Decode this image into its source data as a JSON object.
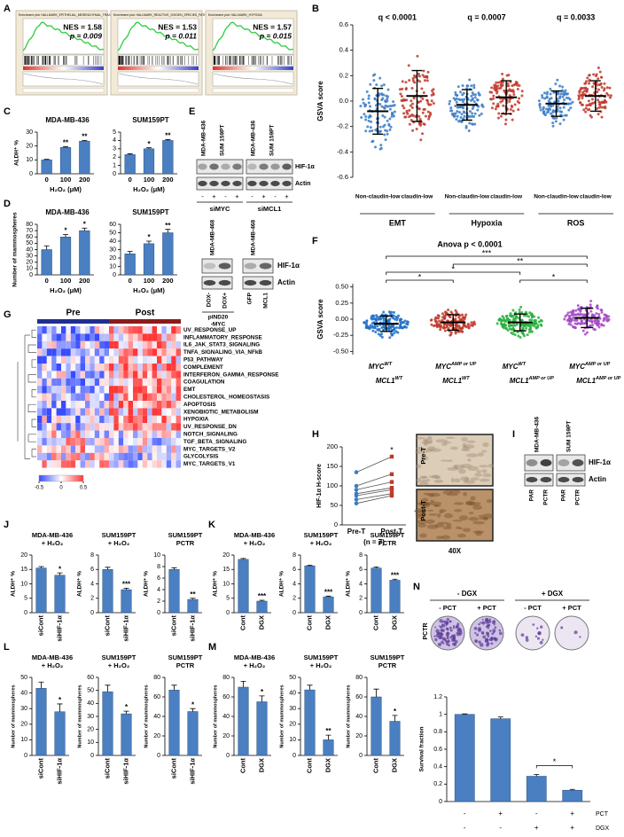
{
  "panel_labels": [
    "A",
    "B",
    "C",
    "D",
    "E",
    "F",
    "G",
    "H",
    "I",
    "J",
    "K",
    "L",
    "M",
    "N"
  ],
  "gsea": [
    {
      "title": "Enrichment plot: HALLMARK_EPITHELIAL_MESENCHYMAL_TRANSITION",
      "nes": "NES = 1.58",
      "p": "p = 0.009"
    },
    {
      "title": "Enrichment plot: HALLMARK_REACTIVE_OXIGEN_SPECIES_PATHWAY",
      "nes": "NES = 1.53",
      "p": "p = 0.011"
    },
    {
      "title": "Enrichment plot: HALLMARK_HYPOXIA",
      "nes": "NES = 1.57",
      "p": "p = 0.015"
    }
  ],
  "chart_data": [
    {
      "type": "bar",
      "title": [
        "MDA-MB-436"
      ],
      "ylabel": "ALDH⁺ %",
      "xlabel": "H₂O₂ (μM)",
      "categories": [
        "0",
        "100",
        "200"
      ],
      "values": [
        10,
        19,
        23.5
      ],
      "errors": [
        0.4,
        0.6,
        0.5
      ],
      "annotations": [
        null,
        "**",
        "**"
      ],
      "ylim": [
        0,
        30
      ],
      "yticks": [
        0,
        10,
        20,
        30
      ],
      "color": "#4a7fc1"
    },
    {
      "type": "bar",
      "title": [
        "SUM159PT"
      ],
      "xlabel": "H₂O₂ (μM)",
      "categories": [
        "0",
        "100",
        "200"
      ],
      "values": [
        2.3,
        3,
        4
      ],
      "errors": [
        0.1,
        0.12,
        0.1
      ],
      "annotations": [
        null,
        "*",
        "**"
      ],
      "ylim": [
        0,
        5
      ],
      "yticks": [
        0,
        1,
        2,
        3,
        4,
        5
      ],
      "color": "#4a7fc1"
    },
    {
      "type": "bar",
      "title": [
        "MDA-MB-436"
      ],
      "ylabel": "Number of mammospheres",
      "xlabel": "H₂O₂ (μM)",
      "categories": [
        "0",
        "100",
        "200"
      ],
      "values": [
        40,
        60,
        70
      ],
      "errors": [
        6,
        4,
        4
      ],
      "annotations": [
        null,
        "*",
        "*"
      ],
      "ylim": [
        0,
        80
      ],
      "yticks": [
        0,
        10,
        20,
        30,
        40,
        50,
        60,
        70,
        80
      ],
      "color": "#4a7fc1"
    },
    {
      "type": "bar",
      "title": [
        "SUM159PT"
      ],
      "xlabel": "H₂O₂ (μM)",
      "categories": [
        "0",
        "100",
        "200"
      ],
      "values": [
        25,
        37,
        50
      ],
      "errors": [
        3,
        3,
        4
      ],
      "annotations": [
        null,
        "*",
        "**"
      ],
      "ylim": [
        0,
        60
      ],
      "yticks": [
        0,
        10,
        20,
        30,
        40,
        50,
        60
      ],
      "color": "#4a7fc1"
    },
    {
      "type": "bar",
      "title": [
        "MDA-MB-436",
        "+ H₂O₂"
      ],
      "ylabel": "ALDH⁺ %",
      "categories": [
        "siCont",
        "siHIF-1α"
      ],
      "rotate_labels": true,
      "values": [
        15.5,
        13
      ],
      "errors": [
        0.5,
        0.8
      ],
      "annotations": [
        null,
        "*"
      ],
      "ylim": [
        0,
        20
      ],
      "yticks": [
        0,
        5,
        10,
        15,
        20
      ],
      "color": "#4a7fc1"
    },
    {
      "type": "bar",
      "title": [
        "SUM159PT",
        "+ H₂O₂"
      ],
      "ylabel": "ALDH⁺ %",
      "categories": [
        "siCont",
        "siHIF-1α"
      ],
      "rotate_labels": true,
      "values": [
        6,
        3.2
      ],
      "errors": [
        0.3,
        0.2
      ],
      "annotations": [
        null,
        "***"
      ],
      "ylim": [
        0,
        8
      ],
      "yticks": [
        0,
        2,
        4,
        6,
        8
      ],
      "color": "#4a7fc1"
    },
    {
      "type": "bar",
      "title": [
        "SUM159PT",
        "PCTR"
      ],
      "ylabel": "ALDH⁺ %",
      "categories": [
        "siCont",
        "siHIF-1α"
      ],
      "rotate_labels": true,
      "values": [
        7.5,
        2.3
      ],
      "errors": [
        0.3,
        0.2
      ],
      "annotations": [
        null,
        "**"
      ],
      "ylim": [
        0,
        10
      ],
      "yticks": [
        0,
        2,
        4,
        6,
        8,
        10
      ],
      "color": "#4a7fc1"
    },
    {
      "type": "bar",
      "title": [
        "MDA-MB-436",
        "+ H₂O₂"
      ],
      "ylabel": "ALDH⁺ %",
      "categories": [
        "Cont",
        "DGX"
      ],
      "rotate_labels": true,
      "values": [
        18.5,
        4
      ],
      "errors": [
        0.3,
        0.3
      ],
      "annotations": [
        null,
        "***"
      ],
      "ylim": [
        0,
        20
      ],
      "yticks": [
        0,
        5,
        10,
        15,
        20
      ],
      "color": "#4a7fc1"
    },
    {
      "type": "bar",
      "title": [
        "SUM159PT",
        "+ H₂O₂"
      ],
      "ylabel": "ALDH⁺ %",
      "categories": [
        "Cont",
        "DGX"
      ],
      "rotate_labels": true,
      "values": [
        6.5,
        2.2
      ],
      "errors": [
        0.1,
        0.1
      ],
      "annotations": [
        null,
        "***"
      ],
      "ylim": [
        0,
        8
      ],
      "yticks": [
        0,
        2,
        4,
        6,
        8
      ],
      "color": "#4a7fc1"
    },
    {
      "type": "bar",
      "title": [
        "SUM159PT",
        "PCTR"
      ],
      "ylabel": "ALDH⁺ %",
      "categories": [
        "Cont",
        "DGX"
      ],
      "rotate_labels": true,
      "values": [
        6.2,
        4.5
      ],
      "errors": [
        0.15,
        0.15
      ],
      "annotations": [
        null,
        "***"
      ],
      "ylim": [
        0,
        8
      ],
      "yticks": [
        0,
        2,
        4,
        6,
        8
      ],
      "color": "#4a7fc1"
    },
    {
      "type": "bar",
      "title": [
        "MDA-MB-436",
        "+ H₂O₂"
      ],
      "ylabel": "Number of mammospheres",
      "categories": [
        "siCont",
        "siHIF-1α"
      ],
      "rotate_labels": true,
      "values": [
        43,
        28
      ],
      "errors": [
        4,
        5
      ],
      "annotations": [
        null,
        "*"
      ],
      "ylim": [
        0,
        50
      ],
      "yticks": [
        0,
        10,
        20,
        30,
        40,
        50
      ],
      "color": "#4a7fc1"
    },
    {
      "type": "bar",
      "title": [
        "SUM159PT",
        "+ H₂O₂"
      ],
      "ylabel": "Number of mammospheres",
      "categories": [
        "siCont",
        "siHIF-1α"
      ],
      "rotate_labels": true,
      "values": [
        49,
        32
      ],
      "errors": [
        5,
        2
      ],
      "annotations": [
        null,
        "*"
      ],
      "ylim": [
        0,
        60
      ],
      "yticks": [
        0,
        10,
        20,
        30,
        40,
        50,
        60
      ],
      "color": "#4a7fc1"
    },
    {
      "type": "bar",
      "title": [
        "SUM159PT",
        "PCTR"
      ],
      "ylabel": "Number of mammospheres",
      "categories": [
        "siCont",
        "siHIF-1α"
      ],
      "rotate_labels": true,
      "values": [
        67,
        45
      ],
      "errors": [
        5,
        3
      ],
      "annotations": [
        null,
        "*"
      ],
      "ylim": [
        0,
        80
      ],
      "yticks": [
        0,
        20,
        40,
        60,
        80
      ],
      "color": "#4a7fc1"
    },
    {
      "type": "bar",
      "title": [
        "MDA-MB-436",
        "+ H₂O₂"
      ],
      "ylabel": "Number of mammospheres",
      "categories": [
        "Cont",
        "DGX"
      ],
      "rotate_labels": true,
      "values": [
        70,
        55
      ],
      "errors": [
        6,
        6
      ],
      "annotations": [
        null,
        "*"
      ],
      "ylim": [
        0,
        80
      ],
      "yticks": [
        0,
        20,
        40,
        60,
        80
      ],
      "color": "#4a7fc1"
    },
    {
      "type": "bar",
      "title": [
        "SUM159PT",
        "+ H₂O₂"
      ],
      "ylabel": "Number of mammospheres",
      "categories": [
        "Cont",
        "DGX"
      ],
      "rotate_labels": true,
      "values": [
        42,
        10
      ],
      "errors": [
        3,
        3
      ],
      "annotations": [
        null,
        "**"
      ],
      "ylim": [
        0,
        50
      ],
      "yticks": [
        0,
        10,
        20,
        30,
        40,
        50
      ],
      "color": "#4a7fc1"
    },
    {
      "type": "bar",
      "title": [
        "SUM159PT",
        "PCTR"
      ],
      "ylabel": "Number of mammospheres",
      "categories": [
        "Cont",
        "DGX"
      ],
      "rotate_labels": true,
      "values": [
        60,
        35
      ],
      "errors": [
        8,
        6
      ],
      "annotations": [
        null,
        "*"
      ],
      "ylim": [
        0,
        80
      ],
      "yticks": [
        0,
        20,
        40,
        60,
        80
      ],
      "color": "#4a7fc1"
    },
    {
      "type": "bar",
      "ylabel": "Survival fraction",
      "conditions": [
        {
          "name": "PCT",
          "signs": [
            "-",
            "+",
            "-",
            "+"
          ]
        },
        {
          "name": "DGX",
          "signs": [
            "-",
            "-",
            "+",
            "+"
          ]
        }
      ],
      "values": [
        1,
        0.95,
        0.29,
        0.13
      ],
      "errors": [
        0.005,
        0.02,
        0.02,
        0.01
      ],
      "comparisons": [
        {
          "between": [
            2,
            3
          ],
          "text": "*"
        }
      ],
      "ylim": [
        0,
        1.2
      ],
      "yticks": [
        0,
        0.2,
        0.4,
        0.6,
        0.8,
        1,
        1.2
      ],
      "color": "#4a7fc1",
      "plates": {
        "row_label": "PCTR",
        "groups": [
          {
            "name": "- DGX",
            "cols": [
              "- PCT",
              "+ PCT"
            ]
          },
          {
            "name": "+ DGX",
            "cols": [
              "- PCT",
              "+ PCT"
            ]
          }
        ]
      }
    },
    {
      "type": "dot",
      "ylabel": "GSVA score",
      "groups": [
        "EMT",
        "Hypoxia",
        "ROS"
      ],
      "annotations": [
        "q < 0.0001",
        "q = 0.0007",
        "q = 0.0033"
      ],
      "series": [
        {
          "name": "Non-claudin-low",
          "color": "#3b7dc4",
          "values": [
            -0.08,
            -0.03,
            -0.02
          ],
          "errors": [
            0.18,
            0.12,
            0.1
          ]
        },
        {
          "name": "claudin-low",
          "color": "#c0392b",
          "values": [
            0.04,
            0.03,
            0.04
          ],
          "errors": [
            0.2,
            0.13,
            0.12
          ]
        }
      ],
      "ylim": [
        -0.6,
        0.6
      ],
      "yticks": [
        -0.6,
        -0.4,
        -0.2,
        {
          "value": 0,
          "label": "0.0"
        },
        0.2,
        0.4,
        0.6
      ]
    },
    {
      "type": "dot",
      "ylabel": "GSVA score",
      "title": "Anova p < 0.0001",
      "categories": [
        {
          "gene1": "MYC",
          "sup1": "WT",
          "gene2": "MCL1",
          "sup2": "WT"
        },
        {
          "gene1": "MYC",
          "sup1": "AMP or UP",
          "gene2": "MCL1",
          "sup2": "WT"
        },
        {
          "gene1": "MYC",
          "sup1": "WT",
          "gene2": "MCL1",
          "sup2": "AMP or UP"
        },
        {
          "gene1": "MYC",
          "sup1": "AMP or UP",
          "gene2": "MCL1",
          "sup2": "AMP or UP"
        }
      ],
      "colors": [
        "#1f6fc5",
        "#c0392b",
        "#27ae3c",
        "#a349c4"
      ],
      "values": [
        -0.07,
        -0.05,
        -0.05,
        0.02
      ],
      "errors": [
        0.12,
        0.12,
        0.13,
        0.15
      ],
      "comparisons": [
        {
          "between": [
            0,
            3
          ],
          "text": "***"
        },
        {
          "between": [
            1,
            3
          ],
          "text": "**"
        },
        {
          "between": [
            0,
            2
          ],
          "text": "*"
        },
        {
          "between": [
            0,
            1
          ],
          "text": "*"
        },
        {
          "between": [
            2,
            3
          ],
          "text": "*"
        }
      ],
      "ylim": [
        -0.55,
        0.55
      ],
      "yticks": [
        {
          "value": -0.5,
          "label": "-0.50"
        },
        -0.25,
        {
          "value": 0,
          "label": "0.00"
        },
        0.25,
        {
          "value": 0.5,
          "label": "0.50"
        }
      ]
    },
    {
      "type": "paired",
      "ylabel": "HIF-1α H-score",
      "categories": [
        "Pre-T",
        "Post-T"
      ],
      "colors": [
        "#3b7dc4",
        "#c0392b"
      ],
      "pre": [
        135,
        100,
        90,
        80,
        75,
        65,
        55
      ],
      "post": [
        175,
        130,
        110,
        95,
        90,
        80,
        75
      ],
      "note": "(n = 7)",
      "annotation": "*",
      "ylim": [
        0,
        200
      ],
      "yticks": [
        0,
        50,
        100,
        150,
        200
      ]
    }
  ],
  "blot_e": {
    "top": {
      "columns": [
        "MDA-MB-436",
        "SUM 159PT",
        "MDA-MB-436",
        "SUM 159PT"
      ],
      "rows": [
        "HIF-1α",
        "Actin"
      ],
      "signs": [
        "-",
        "+",
        "-",
        "+",
        "-",
        "+",
        "-",
        "+"
      ],
      "groups": [
        "siMYC",
        "siMCL1"
      ]
    },
    "bottom": {
      "columns": [
        "MDA-MB-468",
        "MDA-MB-468"
      ],
      "rows": [
        "HIF-1α",
        "Actin"
      ],
      "lanes": [
        "DOX-",
        "DOX+",
        "GFP",
        "MCL1"
      ],
      "construct": [
        "pIND20",
        "-MYC"
      ]
    }
  },
  "heatmap": {
    "columns": [
      "Pre",
      "Post"
    ],
    "genes": [
      "UV_RESPONSE_UP",
      "INFLAMMATORY_RESPONSE",
      "IL6_JAK_STAT3_SIGNALING",
      "TNFA_SIGNALING_VIA_NFkB",
      "P53_PATHWAY",
      "COMPLEMENT",
      "INTERFERON_GAMMA_RESPONSE",
      "COAGULATION",
      "EMT",
      "CHOLESTEROL_HOMEOSTASIS",
      "APOPTOSIS",
      "XENOBIOTIC_METABOLISM",
      "HYPOXIA",
      "UV_RESPONSE_DN",
      "NOTCH_SIGNALING",
      "TGF_BETA_SIGNALING",
      "MYC_TARGETS_V2",
      "GLYCOLYSIS",
      "MYC_TARGETS_V1"
    ],
    "highlight": 12,
    "highlight_color": "#c0392b",
    "scale": [
      -0.5,
      0,
      0.5
    ]
  },
  "images_h": {
    "labels": [
      "Pre-T",
      "Post-T"
    ],
    "magnification": "40X"
  },
  "blot_i": {
    "columns": [
      "MDA-MB-436",
      "SUM 159PT"
    ],
    "rows": [
      "HIF-1α",
      "Actin"
    ],
    "lanes": [
      "PAR",
      "PCTR",
      "PAR",
      "PCTR"
    ]
  }
}
